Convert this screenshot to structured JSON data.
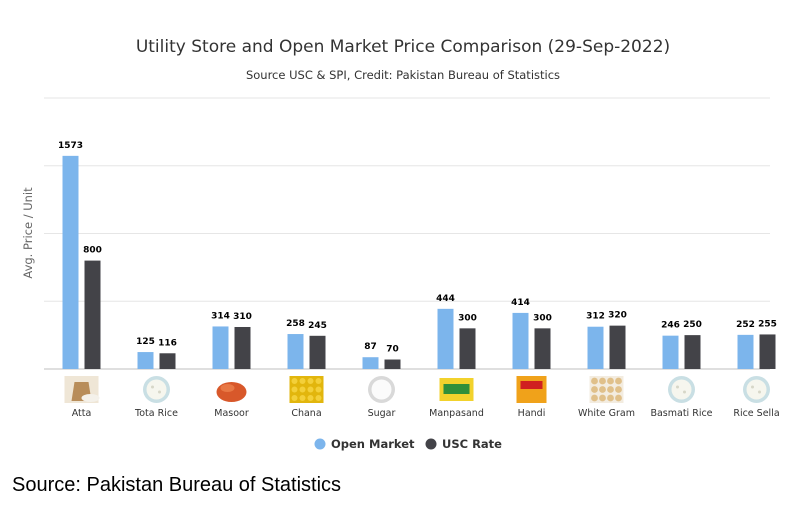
{
  "chart_data": {
    "type": "bar",
    "title": "Utility Store and Open Market Price Comparison (29-Sep-2022)",
    "subtitle": "Source USC & SPI, Credit: Pakistan Bureau of Statistics",
    "ylabel": "Avg. Price / Unit",
    "xlabel": "",
    "ylim": [
      0,
      2000
    ],
    "grid": true,
    "legend": "bottom-center",
    "categories": [
      "Atta",
      "Tota Rice",
      "Masoor",
      "Chana",
      "Sugar",
      "Manpasand",
      "Handi",
      "White Gram",
      "Basmati Rice",
      "Rice Sella"
    ],
    "category_icons": [
      "flour-sack-icon",
      "rice-icon",
      "lentils-icon",
      "chickpeas-icon",
      "sugar-icon",
      "ghee-pack-icon",
      "ghee-tin-icon",
      "white-gram-icon",
      "rice-icon",
      "rice-icon"
    ],
    "series": [
      {
        "name": "Open Market",
        "color": "#7cb5ec",
        "values": [
          1573,
          125,
          314,
          258,
          87,
          444,
          414,
          312,
          246,
          252
        ]
      },
      {
        "name": "USC Rate",
        "color": "#434348",
        "values": [
          800,
          116,
          310,
          245,
          70,
          300,
          300,
          320,
          250,
          255
        ]
      }
    ]
  },
  "footer": {
    "text": "Source: Pakistan Bureau of Statistics"
  }
}
